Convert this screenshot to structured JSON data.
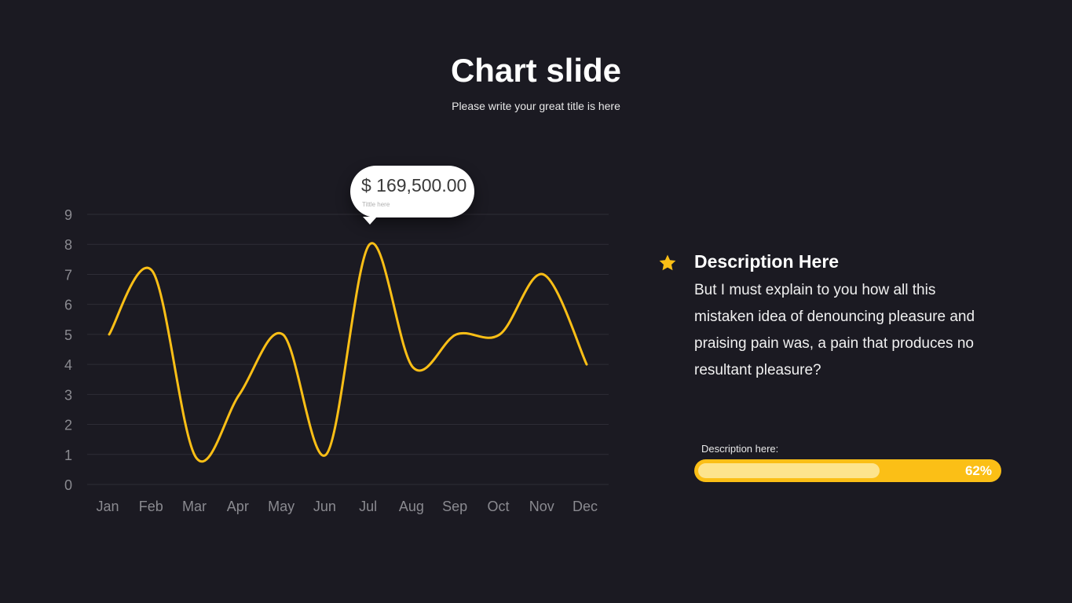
{
  "slide": {
    "title": "Chart slide",
    "subtitle": "Please write your great title is here"
  },
  "chart_data": {
    "type": "line",
    "categories": [
      "Jan",
      "Feb",
      "Mar",
      "Apr",
      "May",
      "Jun",
      "Jul",
      "Aug",
      "Sep",
      "Oct",
      "Nov",
      "Dec"
    ],
    "series": [
      {
        "values": [
          5,
          7.1,
          0.9,
          3,
          5,
          1,
          8,
          3.9,
          5,
          5,
          7,
          4
        ]
      }
    ],
    "yticks": [
      "0",
      "1",
      "2",
      "3",
      "4",
      "5",
      "6",
      "7",
      "8",
      "9"
    ],
    "ylim": [
      0,
      9
    ],
    "grid": true,
    "line_color": "#fbbf16",
    "grid_color": "#2e2d36",
    "annotation": {
      "category": "Jul",
      "value_text": "$ 169,500.00",
      "sub_text": "Tittle here"
    }
  },
  "description": {
    "heading": "Description Here",
    "body": "But I must explain to you how all this mistaken idea of denouncing pleasure and praising pain was, a pain that produces no resultant pleasure?",
    "icon": "star-icon",
    "accent_color": "#fbbf16"
  },
  "progress": {
    "label": "Description here:",
    "value": 0.62,
    "value_text": "62%"
  }
}
